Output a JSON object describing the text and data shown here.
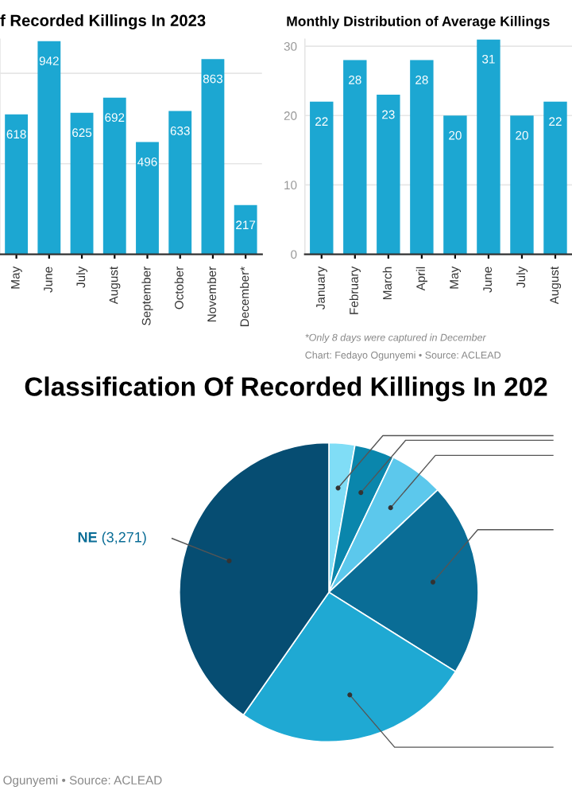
{
  "chart_data": [
    {
      "type": "bar",
      "title": "f Recorded Killings In 2023",
      "categories": [
        "May",
        "June",
        "July",
        "August",
        "September",
        "October",
        "November",
        "December*"
      ],
      "values": [
        618,
        942,
        625,
        692,
        496,
        633,
        863,
        217
      ],
      "color": "#1ca7d2",
      "ylim": [
        0,
        950
      ],
      "yticks": [
        {
          "value": 0,
          "label": null
        },
        {
          "value": 400,
          "label": null
        },
        {
          "value": 800,
          "label": null
        }
      ],
      "grid": "y",
      "data_labels": true,
      "tick_labels": "x"
    },
    {
      "type": "bar",
      "title": "Monthly Distribution of Average Killings",
      "categories": [
        "January",
        "February",
        "March",
        "April",
        "May",
        "June",
        "July",
        "August"
      ],
      "values": [
        22,
        28,
        23,
        28,
        20,
        31,
        20,
        22
      ],
      "color": "#1ca7d2",
      "ylim": [
        0,
        31
      ],
      "yticks": [
        0,
        10,
        20,
        30
      ],
      "grid": "y",
      "data_labels": true,
      "annotations": [
        "*Only 8 days were captured in December",
        "Chart: Fedayo Ogunyemi • Source: ACLEAD"
      ]
    },
    {
      "type": "pie",
      "title": "Classification Of Recorded Killings In 202",
      "categories": [
        null,
        null,
        null,
        null,
        null,
        "NE"
      ],
      "values": [
        227,
        349,
        479,
        1696,
        2094,
        3271
      ],
      "value_labels": [
        null,
        null,
        null,
        null,
        null,
        "(3,271)"
      ],
      "colors": [
        "#80ddf6",
        "#0a86ac",
        "#5cc8ec",
        "#0a6d96",
        "#1fa9d3",
        "#064d72"
      ],
      "annotations": [
        "Ogunyemi • Source: ACLEAD"
      ]
    }
  ]
}
